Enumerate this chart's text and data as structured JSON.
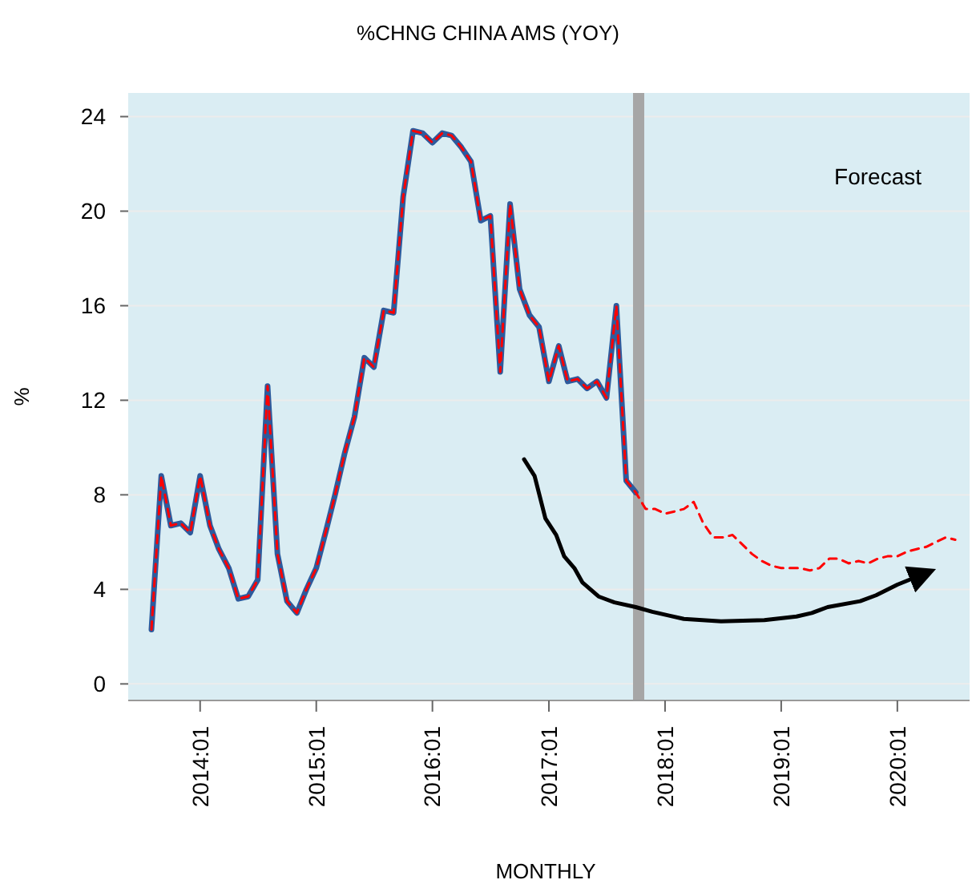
{
  "chart_data": {
    "type": "line",
    "title": "%CHNG CHINA AMS (YOY)",
    "xlabel": "MONTHLY",
    "ylabel": "%",
    "x": [
      "2013-08",
      "2013-09",
      "2013-10",
      "2013-11",
      "2013-12",
      "2014-01",
      "2014-02",
      "2014-03",
      "2014-04",
      "2014-05",
      "2014-06",
      "2014-07",
      "2014-08",
      "2014-09",
      "2014-10",
      "2014-11",
      "2014-12",
      "2015-01",
      "2015-02",
      "2015-03",
      "2015-04",
      "2015-05",
      "2015-06",
      "2015-07",
      "2015-08",
      "2015-09",
      "2015-10",
      "2015-11",
      "2015-12",
      "2016-01",
      "2016-02",
      "2016-03",
      "2016-04",
      "2016-05",
      "2016-06",
      "2016-07",
      "2016-08",
      "2016-09",
      "2016-10",
      "2016-11",
      "2016-12",
      "2017-01",
      "2017-02",
      "2017-03",
      "2017-04",
      "2017-05",
      "2017-06",
      "2017-07",
      "2017-08",
      "2017-09",
      "2017-10",
      "2017-11",
      "2017-12",
      "2018-01",
      "2018-02",
      "2018-03",
      "2018-04",
      "2018-05",
      "2018-06",
      "2018-07",
      "2018-08",
      "2018-09",
      "2018-10",
      "2018-11",
      "2018-12",
      "2019-01",
      "2019-02",
      "2019-03",
      "2019-04",
      "2019-05",
      "2019-06",
      "2019-07",
      "2019-08",
      "2019-09",
      "2019-10",
      "2019-11",
      "2019-12",
      "2020-01",
      "2020-02",
      "2020-03",
      "2020-04",
      "2020-05",
      "2020-06",
      "2020-07"
    ],
    "series": [
      {
        "color": "#2e5a9c",
        "line_style": "solid",
        "values": [
          2.3,
          8.8,
          6.7,
          6.8,
          6.4,
          8.8,
          6.7,
          5.7,
          4.9,
          3.6,
          3.7,
          4.4,
          12.6,
          5.5,
          3.5,
          3.0,
          4.0,
          4.9,
          6.5,
          8.0,
          9.8,
          11.3,
          13.8,
          13.4,
          15.8,
          15.7,
          20.6,
          23.4,
          23.3,
          22.9,
          23.3,
          23.2,
          22.7,
          22.1,
          19.6,
          19.8,
          13.2,
          20.3,
          16.7,
          15.6,
          15.1,
          12.8,
          14.3,
          12.8,
          12.9,
          12.5,
          12.8,
          12.1,
          16.0,
          8.6,
          8.1,
          null,
          null,
          null,
          null,
          null,
          null,
          null,
          null,
          null,
          null,
          null,
          null,
          null,
          null,
          null,
          null,
          null,
          null,
          null,
          null,
          null,
          null,
          null,
          null,
          null,
          null,
          null,
          null,
          null,
          null,
          null,
          null,
          null
        ]
      },
      {
        "color": "#ff0000",
        "line_style": "dashed",
        "values": [
          2.3,
          8.8,
          6.7,
          6.8,
          6.4,
          8.8,
          6.7,
          5.7,
          4.9,
          3.6,
          3.7,
          4.4,
          12.6,
          5.5,
          3.5,
          3.0,
          4.0,
          4.9,
          6.5,
          8.0,
          9.8,
          11.3,
          13.8,
          13.4,
          15.8,
          15.7,
          20.6,
          23.4,
          23.3,
          22.9,
          23.3,
          23.2,
          22.7,
          22.1,
          19.6,
          19.8,
          13.2,
          20.3,
          16.7,
          15.6,
          15.1,
          12.8,
          14.3,
          12.8,
          12.9,
          12.5,
          12.8,
          12.1,
          16.0,
          8.6,
          8.1,
          7.4,
          7.4,
          7.2,
          7.3,
          7.4,
          7.7,
          6.8,
          6.2,
          6.2,
          6.3,
          5.9,
          5.5,
          5.2,
          5.0,
          4.9,
          4.9,
          4.9,
          4.8,
          4.9,
          5.3,
          5.3,
          5.1,
          5.2,
          5.1,
          5.3,
          5.4,
          5.4,
          5.6,
          5.7,
          5.8,
          6.0,
          6.2,
          6.1
        ]
      },
      {
        "color": "#000000",
        "line_style": "solid",
        "x": [
          "2016-10-15",
          "2016-11-17",
          "2016-12-21",
          "2017-01-24",
          "2017-02-18",
          "2017-03-22",
          "2017-04-16",
          "2017-06-06",
          "2017-07-26",
          "2017-10-01",
          "2017-11-22",
          "2018-01-11",
          "2018-03-01",
          "2018-06-26",
          "2018-11-09",
          "2019-02-18",
          "2019-04-07",
          "2019-05-27",
          "2019-09-06",
          "2019-10-26",
          "2020-01-01",
          "2020-04-11"
        ],
        "values": [
          9.5,
          8.8,
          7.0,
          6.3,
          5.4,
          4.9,
          4.3,
          3.7,
          3.45,
          3.25,
          3.05,
          2.9,
          2.75,
          2.65,
          2.7,
          2.85,
          3.0,
          3.25,
          3.5,
          3.75,
          4.2,
          4.75
        ]
      }
    ],
    "xlim": [
      "2013-05-20",
      "2020-08-15"
    ],
    "xticks": [
      {
        "value": "2014-01",
        "label": "2014:01"
      },
      {
        "value": "2015-01",
        "label": "2015:01"
      },
      {
        "value": "2016-01",
        "label": "2016:01"
      },
      {
        "value": "2017-01",
        "label": "2017:01"
      },
      {
        "value": "2018-01",
        "label": "2018:01"
      },
      {
        "value": "2019-01",
        "label": "2019:01"
      },
      {
        "value": "2020-01",
        "label": "2020:01"
      }
    ],
    "ylim": [
      -0.7,
      25
    ],
    "yticks": [
      0,
      4,
      8,
      12,
      16,
      20,
      24
    ],
    "grid": "y",
    "ref_lines": [
      {
        "axis": "x",
        "value": "2017-10-10",
        "color": "#a6a6a6"
      }
    ],
    "annotations": [
      "Forecast"
    ]
  }
}
